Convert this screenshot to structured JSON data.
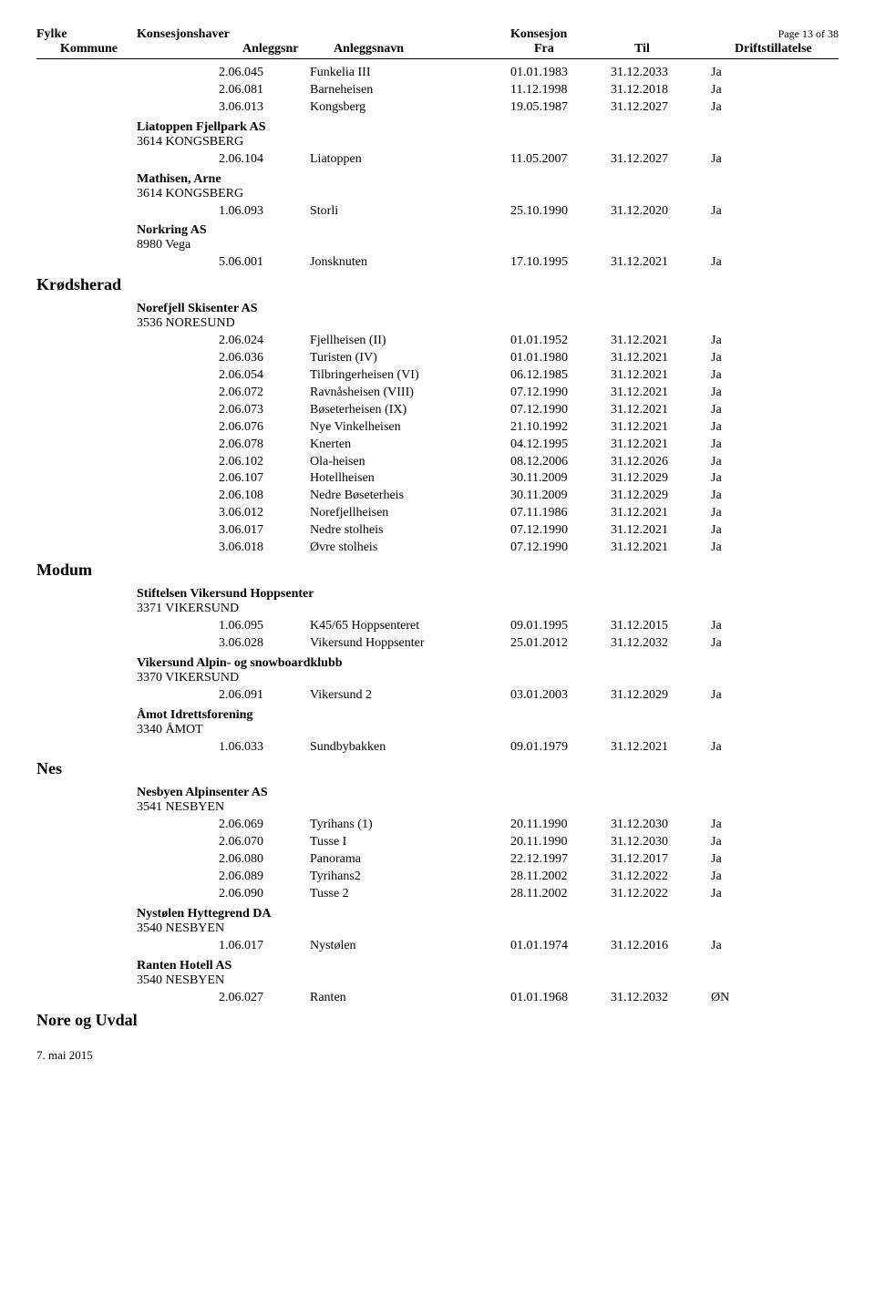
{
  "header": {
    "fylke": "Fylke",
    "owner": "Konsesjonshaver",
    "kons": "Konsesjon",
    "page": "Page 13 of 38",
    "kommune": "Kommune",
    "anr": "Anleggsnr",
    "anavn": "Anleggsnavn",
    "fra": "Fra",
    "til": "Til",
    "drift": "Driftstillatelse"
  },
  "top_rows": [
    {
      "anr": "2.06.045",
      "anavn": "Funkelia III",
      "fra": "01.01.1983",
      "til": "31.12.2033",
      "drift": "Ja"
    },
    {
      "anr": "2.06.081",
      "anavn": "Barneheisen",
      "fra": "11.12.1998",
      "til": "31.12.2018",
      "drift": "Ja"
    },
    {
      "anr": "3.06.013",
      "anavn": "Kongsberg",
      "fra": "19.05.1987",
      "til": "31.12.2027",
      "drift": "Ja"
    }
  ],
  "liatoppen": {
    "owner": "Liatoppen Fjellpark AS",
    "addr": "3614 KONGSBERG",
    "rows": [
      {
        "anr": "2.06.104",
        "anavn": "Liatoppen",
        "fra": "11.05.2007",
        "til": "31.12.2027",
        "drift": "Ja"
      }
    ]
  },
  "mathisen": {
    "owner": "Mathisen, Arne",
    "addr": "3614  KONGSBERG",
    "rows": [
      {
        "anr": "1.06.093",
        "anavn": "Storli",
        "fra": "25.10.1990",
        "til": "31.12.2020",
        "drift": "Ja"
      }
    ]
  },
  "norkring": {
    "owner": "Norkring AS",
    "addr": "8980 Vega",
    "rows": [
      {
        "anr": "5.06.001",
        "anavn": "Jonsknuten",
        "fra": "17.10.1995",
        "til": "31.12.2021",
        "drift": "Ja"
      }
    ]
  },
  "krodsherad": {
    "fylke": "Krødsherad"
  },
  "norefjell": {
    "owner": "Norefjell Skisenter AS",
    "addr": "3536 NORESUND",
    "rows": [
      {
        "anr": "2.06.024",
        "anavn": "Fjellheisen (II)",
        "fra": "01.01.1952",
        "til": "31.12.2021",
        "drift": "Ja"
      },
      {
        "anr": "2.06.036",
        "anavn": "Turisten (IV)",
        "fra": "01.01.1980",
        "til": "31.12.2021",
        "drift": "Ja"
      },
      {
        "anr": "2.06.054",
        "anavn": "Tilbringerheisen (VI)",
        "fra": "06.12.1985",
        "til": "31.12.2021",
        "drift": "Ja"
      },
      {
        "anr": "2.06.072",
        "anavn": "Ravnåsheisen (VIII)",
        "fra": "07.12.1990",
        "til": "31.12.2021",
        "drift": "Ja"
      },
      {
        "anr": "2.06.073",
        "anavn": "Bøseterheisen (IX)",
        "fra": "07.12.1990",
        "til": "31.12.2021",
        "drift": "Ja"
      },
      {
        "anr": "2.06.076",
        "anavn": "Nye Vinkelheisen",
        "fra": "21.10.1992",
        "til": "31.12.2021",
        "drift": "Ja"
      },
      {
        "anr": "2.06.078",
        "anavn": "Knerten",
        "fra": "04.12.1995",
        "til": "31.12.2021",
        "drift": "Ja"
      },
      {
        "anr": "2.06.102",
        "anavn": "Ola-heisen",
        "fra": "08.12.2006",
        "til": "31.12.2026",
        "drift": "Ja"
      },
      {
        "anr": "2.06.107",
        "anavn": "Hotellheisen",
        "fra": "30.11.2009",
        "til": "31.12.2029",
        "drift": "Ja"
      },
      {
        "anr": "2.06.108",
        "anavn": "Nedre Bøseterheis",
        "fra": "30.11.2009",
        "til": "31.12.2029",
        "drift": "Ja"
      },
      {
        "anr": "3.06.012",
        "anavn": "Norefjellheisen",
        "fra": "07.11.1986",
        "til": "31.12.2021",
        "drift": "Ja"
      },
      {
        "anr": "3.06.017",
        "anavn": "Nedre stolheis",
        "fra": "07.12.1990",
        "til": "31.12.2021",
        "drift": "Ja"
      },
      {
        "anr": "3.06.018",
        "anavn": "Øvre stolheis",
        "fra": "07.12.1990",
        "til": "31.12.2021",
        "drift": "Ja"
      }
    ]
  },
  "modum": {
    "fylke": "Modum"
  },
  "stiftelsen": {
    "owner": "Stiftelsen Vikersund Hoppsenter",
    "addr": "3371 VIKERSUND",
    "rows": [
      {
        "anr": "1.06.095",
        "anavn": "K45/65 Hoppsenteret",
        "fra": "09.01.1995",
        "til": "31.12.2015",
        "drift": "Ja"
      },
      {
        "anr": "3.06.028",
        "anavn": "Vikersund Hoppsenter",
        "fra": "25.01.2012",
        "til": "31.12.2032",
        "drift": "Ja"
      }
    ]
  },
  "vikersundalpin": {
    "owner": "Vikersund Alpin- og snowboardklubb",
    "addr": "3370 VIKERSUND",
    "rows": [
      {
        "anr": "2.06.091",
        "anavn": "Vikersund 2",
        "fra": "03.01.2003",
        "til": "31.12.2029",
        "drift": "Ja"
      }
    ]
  },
  "amot": {
    "owner": "Åmot Idrettsforening",
    "addr": "3340  ÅMOT",
    "rows": [
      {
        "anr": "1.06.033",
        "anavn": "Sundbybakken",
        "fra": "09.01.1979",
        "til": "31.12.2021",
        "drift": "Ja"
      }
    ]
  },
  "nes": {
    "fylke": "Nes"
  },
  "nesbyen": {
    "owner": "Nesbyen Alpinsenter AS",
    "addr": "3541  NESBYEN",
    "rows": [
      {
        "anr": "2.06.069",
        "anavn": "Tyrihans (1)",
        "fra": "20.11.1990",
        "til": "31.12.2030",
        "drift": "Ja"
      },
      {
        "anr": "2.06.070",
        "anavn": "Tusse I",
        "fra": "20.11.1990",
        "til": "31.12.2030",
        "drift": "Ja"
      },
      {
        "anr": "2.06.080",
        "anavn": "Panorama",
        "fra": "22.12.1997",
        "til": "31.12.2017",
        "drift": "Ja"
      },
      {
        "anr": "2.06.089",
        "anavn": "Tyrihans2",
        "fra": "28.11.2002",
        "til": "31.12.2022",
        "drift": "Ja"
      },
      {
        "anr": "2.06.090",
        "anavn": "Tusse 2",
        "fra": "28.11.2002",
        "til": "31.12.2022",
        "drift": "Ja"
      }
    ]
  },
  "nystolen": {
    "owner": "Nystølen Hyttegrend DA",
    "addr": "3540 NESBYEN",
    "rows": [
      {
        "anr": "1.06.017",
        "anavn": "Nystølen",
        "fra": "01.01.1974",
        "til": "31.12.2016",
        "drift": "Ja"
      }
    ]
  },
  "ranten": {
    "owner": "Ranten Hotell AS",
    "addr": "3540  NESBYEN",
    "rows": [
      {
        "anr": "2.06.027",
        "anavn": "Ranten",
        "fra": "01.01.1968",
        "til": "31.12.2032",
        "drift": "ØN"
      }
    ]
  },
  "nore": {
    "fylke": "Nore og Uvdal"
  },
  "footer": "7. mai 2015"
}
